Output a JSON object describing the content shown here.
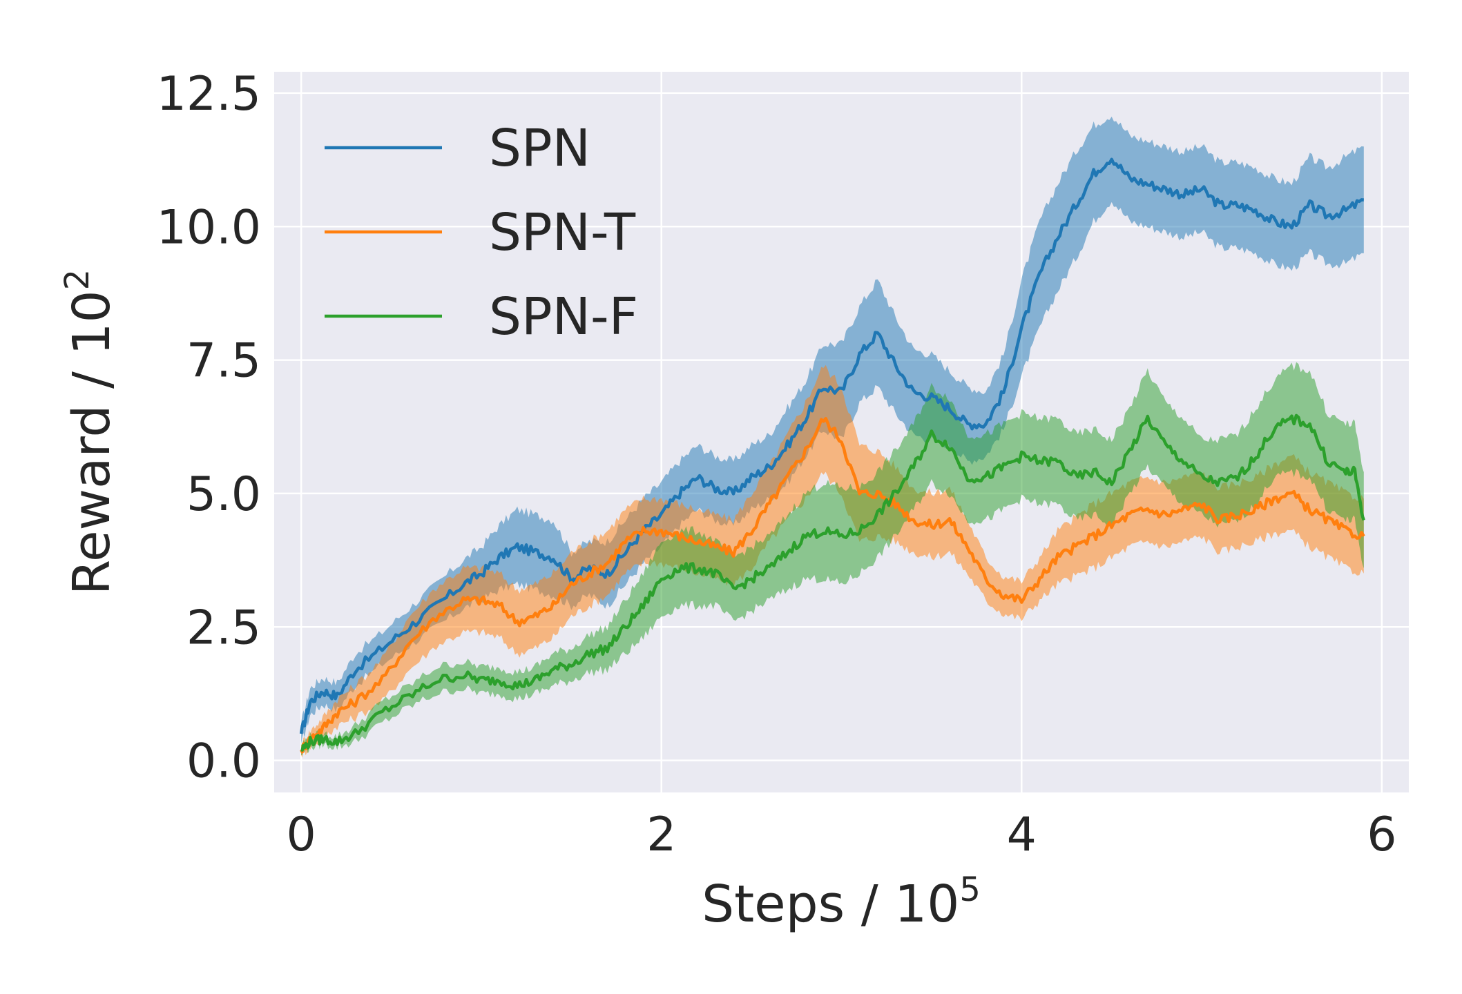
{
  "chart_data": {
    "type": "line",
    "xlabel_base": "Steps / 10",
    "xlabel_exp": "5",
    "ylabel_base": "Reward / 10",
    "ylabel_exp": "2",
    "xlim": [
      -0.15,
      6.15
    ],
    "ylim": [
      -0.6,
      12.9
    ],
    "xticks": [
      0,
      2,
      4,
      6
    ],
    "xtick_labels": [
      "0",
      "2",
      "4",
      "6"
    ],
    "yticks": [
      0.0,
      2.5,
      5.0,
      7.5,
      10.0,
      12.5
    ],
    "ytick_labels": [
      "0.0",
      "2.5",
      "5.0",
      "7.5",
      "10.0",
      "12.5"
    ],
    "grid": true,
    "legend_position": "top-left",
    "series": [
      {
        "name": "SPN",
        "color": "#1f77b4",
        "x": [
          0,
          0.05,
          0.12,
          0.2,
          0.3,
          0.45,
          0.6,
          0.75,
          0.9,
          1.0,
          1.1,
          1.2,
          1.3,
          1.4,
          1.5,
          1.6,
          1.7,
          1.8,
          1.9,
          2.0,
          2.1,
          2.2,
          2.3,
          2.4,
          2.5,
          2.6,
          2.7,
          2.8,
          2.9,
          3.0,
          3.1,
          3.2,
          3.3,
          3.4,
          3.5,
          3.6,
          3.7,
          3.8,
          3.9,
          4.0,
          4.1,
          4.2,
          4.3,
          4.4,
          4.5,
          4.6,
          4.7,
          4.8,
          4.9,
          5.0,
          5.1,
          5.2,
          5.3,
          5.4,
          5.5,
          5.6,
          5.7,
          5.8,
          5.9
        ],
        "y": [
          0.5,
          1.1,
          1.3,
          1.2,
          1.7,
          2.1,
          2.5,
          2.9,
          3.3,
          3.5,
          3.8,
          4.0,
          3.9,
          3.8,
          3.4,
          3.6,
          3.5,
          3.9,
          4.3,
          4.6,
          5.0,
          5.3,
          5.1,
          5.0,
          5.3,
          5.5,
          5.9,
          6.4,
          7.0,
          6.9,
          7.6,
          8.0,
          7.4,
          6.9,
          6.8,
          6.6,
          6.3,
          6.3,
          6.9,
          8.1,
          9.1,
          9.8,
          10.4,
          11.0,
          11.3,
          10.9,
          10.8,
          10.7,
          10.6,
          10.7,
          10.4,
          10.4,
          10.3,
          10.1,
          10.0,
          10.4,
          10.2,
          10.3,
          10.5
        ],
        "band": [
          0.2,
          0.25,
          0.25,
          0.25,
          0.3,
          0.3,
          0.35,
          0.4,
          0.45,
          0.5,
          0.6,
          0.7,
          0.7,
          0.7,
          0.5,
          0.5,
          0.6,
          0.6,
          0.6,
          0.6,
          0.6,
          0.6,
          0.6,
          0.6,
          0.6,
          0.6,
          0.7,
          0.7,
          0.8,
          0.9,
          0.9,
          1.0,
          0.9,
          0.8,
          0.8,
          0.7,
          0.7,
          0.6,
          0.7,
          0.9,
          1.0,
          1.0,
          1.0,
          0.9,
          0.8,
          0.8,
          0.8,
          0.8,
          0.8,
          0.8,
          0.8,
          0.8,
          0.8,
          0.8,
          0.8,
          0.9,
          0.9,
          1.0,
          1.0
        ]
      },
      {
        "name": "SPN-T",
        "color": "#ff7f0e",
        "x": [
          0,
          0.05,
          0.12,
          0.2,
          0.3,
          0.45,
          0.6,
          0.75,
          0.9,
          1.0,
          1.1,
          1.2,
          1.3,
          1.4,
          1.5,
          1.6,
          1.7,
          1.8,
          1.9,
          2.0,
          2.1,
          2.2,
          2.3,
          2.4,
          2.5,
          2.6,
          2.7,
          2.8,
          2.9,
          3.0,
          3.1,
          3.2,
          3.3,
          3.4,
          3.5,
          3.6,
          3.7,
          3.8,
          3.9,
          4.0,
          4.1,
          4.2,
          4.3,
          4.4,
          4.5,
          4.6,
          4.7,
          4.8,
          4.9,
          5.0,
          5.1,
          5.2,
          5.3,
          5.4,
          5.5,
          5.6,
          5.7,
          5.8,
          5.9
        ],
        "y": [
          0.2,
          0.4,
          0.6,
          0.9,
          1.1,
          1.5,
          2.2,
          2.7,
          3.0,
          3.0,
          2.9,
          2.6,
          2.7,
          2.9,
          3.3,
          3.5,
          3.7,
          4.1,
          4.3,
          4.3,
          4.2,
          4.1,
          4.0,
          3.9,
          4.3,
          4.8,
          5.3,
          5.8,
          6.4,
          6.0,
          5.0,
          5.0,
          4.8,
          4.5,
          4.4,
          4.5,
          4.0,
          3.4,
          3.1,
          3.0,
          3.4,
          3.8,
          4.0,
          4.2,
          4.4,
          4.6,
          4.7,
          4.6,
          4.7,
          4.8,
          4.5,
          4.6,
          4.7,
          4.9,
          5.0,
          4.7,
          4.5,
          4.3,
          4.2
        ],
        "band": [
          0.1,
          0.15,
          0.2,
          0.25,
          0.3,
          0.4,
          0.5,
          0.55,
          0.6,
          0.6,
          0.6,
          0.6,
          0.6,
          0.6,
          0.6,
          0.6,
          0.6,
          0.6,
          0.6,
          0.6,
          0.6,
          0.6,
          0.6,
          0.6,
          0.7,
          0.7,
          0.8,
          0.9,
          1.0,
          1.0,
          0.9,
          0.8,
          0.7,
          0.6,
          0.6,
          0.6,
          0.5,
          0.4,
          0.35,
          0.35,
          0.4,
          0.5,
          0.55,
          0.6,
          0.6,
          0.6,
          0.6,
          0.6,
          0.6,
          0.6,
          0.6,
          0.6,
          0.6,
          0.65,
          0.7,
          0.7,
          0.7,
          0.7,
          0.7
        ]
      },
      {
        "name": "SPN-F",
        "color": "#2ca02c",
        "x": [
          0,
          0.05,
          0.12,
          0.2,
          0.3,
          0.45,
          0.6,
          0.75,
          0.9,
          1.0,
          1.1,
          1.2,
          1.3,
          1.4,
          1.5,
          1.6,
          1.7,
          1.8,
          1.9,
          2.0,
          2.1,
          2.2,
          2.3,
          2.4,
          2.5,
          2.6,
          2.7,
          2.8,
          2.9,
          3.0,
          3.1,
          3.2,
          3.3,
          3.4,
          3.5,
          3.6,
          3.7,
          3.8,
          3.9,
          4.0,
          4.1,
          4.2,
          4.3,
          4.4,
          4.5,
          4.6,
          4.7,
          4.8,
          4.9,
          5.0,
          5.1,
          5.2,
          5.3,
          5.4,
          5.5,
          5.6,
          5.7,
          5.8,
          5.85,
          5.9
        ],
        "y": [
          0.2,
          0.35,
          0.4,
          0.35,
          0.5,
          0.9,
          1.2,
          1.5,
          1.6,
          1.5,
          1.5,
          1.4,
          1.5,
          1.7,
          1.8,
          2.0,
          2.1,
          2.5,
          2.9,
          3.4,
          3.6,
          3.6,
          3.5,
          3.2,
          3.4,
          3.6,
          3.9,
          4.2,
          4.3,
          4.2,
          4.3,
          4.6,
          5.0,
          5.5,
          6.1,
          5.9,
          5.3,
          5.3,
          5.5,
          5.7,
          5.6,
          5.6,
          5.3,
          5.4,
          5.2,
          5.8,
          6.4,
          5.9,
          5.6,
          5.3,
          5.2,
          5.3,
          5.7,
          6.2,
          6.4,
          6.3,
          5.6,
          5.4,
          5.4,
          4.5
        ],
        "band": [
          0.1,
          0.1,
          0.1,
          0.1,
          0.15,
          0.2,
          0.2,
          0.25,
          0.25,
          0.25,
          0.25,
          0.25,
          0.25,
          0.3,
          0.3,
          0.35,
          0.4,
          0.5,
          0.6,
          0.7,
          0.7,
          0.7,
          0.6,
          0.6,
          0.6,
          0.6,
          0.7,
          0.8,
          0.9,
          0.9,
          0.8,
          0.8,
          0.8,
          0.8,
          0.9,
          0.9,
          0.8,
          0.8,
          0.8,
          0.8,
          0.8,
          0.8,
          0.8,
          0.8,
          0.8,
          0.8,
          0.9,
          0.8,
          0.8,
          0.7,
          0.8,
          0.8,
          0.9,
          0.9,
          1.0,
          1.0,
          0.9,
          0.9,
          0.9,
          0.9
        ]
      }
    ]
  }
}
